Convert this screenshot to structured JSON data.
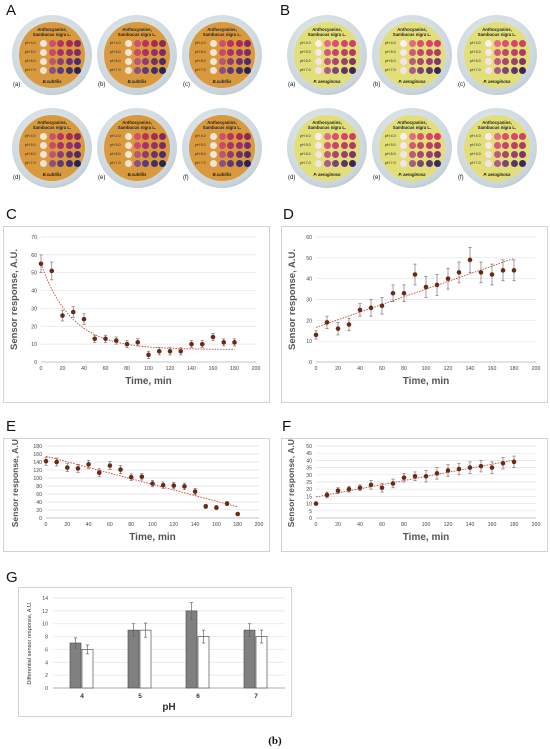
{
  "panel_labels": {
    "A": "A",
    "B": "B",
    "C": "C",
    "D": "D",
    "E": "E",
    "F": "F",
    "G": "G"
  },
  "footer": "(b)",
  "plates": {
    "title_line1": "Anthocyanins,",
    "title_line2": "Sambucus nigra L.",
    "ph_labels": [
      "pH 4.0",
      "pH 5.0",
      "pH 6.0",
      "pH 7.0"
    ],
    "sub_labels": [
      "(a)",
      "(b)",
      "(c)",
      "(d)",
      "(e)",
      "(f)"
    ],
    "A": {
      "organism": "B.subtilis",
      "agar_color": "#d99a3e"
    },
    "B": {
      "organism": "P. aeruginosa",
      "agar_color": "#e2de7a"
    }
  },
  "chart_data": [
    {
      "id": "C",
      "type": "scatter",
      "ylabel": "Sensor response, A.U.",
      "xlabel": "Time, min",
      "xlim": [
        0,
        200
      ],
      "ylim": [
        0,
        70
      ],
      "xticks": [
        0,
        20,
        40,
        60,
        80,
        100,
        120,
        140,
        160,
        180,
        200
      ],
      "yticks": [
        0,
        10,
        20,
        30,
        40,
        50,
        60,
        70
      ],
      "x": [
        0,
        10,
        20,
        30,
        40,
        50,
        60,
        70,
        80,
        90,
        100,
        110,
        120,
        130,
        140,
        150,
        160,
        170,
        180
      ],
      "y": [
        55,
        51,
        26,
        28,
        24,
        13,
        13,
        12,
        10,
        11,
        4,
        6,
        6,
        6,
        10,
        10,
        14,
        11,
        11
      ],
      "err": [
        5,
        5,
        3,
        3,
        3,
        2,
        2,
        2,
        2,
        2,
        2,
        2,
        2,
        2,
        2,
        2,
        2,
        2,
        2
      ],
      "trend": "exponential-decay"
    },
    {
      "id": "D",
      "type": "scatter",
      "ylabel": "Sensor response, A.U.",
      "xlabel": "Time, min",
      "xlim": [
        0,
        200
      ],
      "ylim": [
        0,
        60
      ],
      "xticks": [
        0,
        20,
        40,
        60,
        80,
        100,
        120,
        140,
        160,
        180,
        200
      ],
      "yticks": [
        0,
        10,
        20,
        30,
        40,
        50,
        60
      ],
      "x": [
        0,
        10,
        20,
        30,
        40,
        50,
        60,
        70,
        80,
        90,
        100,
        110,
        120,
        130,
        140,
        150,
        160,
        170,
        180
      ],
      "y": [
        13,
        19,
        16,
        18,
        25,
        26,
        27,
        33,
        33,
        42,
        36,
        37,
        40,
        43,
        49,
        43,
        42,
        44,
        44
      ],
      "err": [
        2,
        3,
        3,
        3,
        3,
        4,
        4,
        4,
        4,
        5,
        5,
        5,
        5,
        5,
        6,
        5,
        5,
        5,
        5
      ],
      "trend": "linear"
    },
    {
      "id": "E",
      "type": "scatter",
      "ylabel": "Sensor response, A.U.",
      "xlabel": "Time, min",
      "xlim": [
        0,
        200
      ],
      "ylim": [
        0,
        180
      ],
      "xticks": [
        0,
        20,
        40,
        60,
        80,
        100,
        120,
        140,
        160,
        180,
        200
      ],
      "yticks": [
        0,
        20,
        40,
        60,
        80,
        100,
        120,
        140,
        160,
        180
      ],
      "x": [
        0,
        10,
        20,
        30,
        40,
        50,
        60,
        70,
        80,
        90,
        100,
        110,
        120,
        130,
        140,
        150,
        160,
        170,
        180
      ],
      "y": [
        142,
        140,
        126,
        124,
        134,
        113,
        131,
        121,
        102,
        103,
        86,
        82,
        81,
        79,
        66,
        29,
        26,
        36,
        10
      ],
      "err": [
        10,
        10,
        10,
        10,
        10,
        10,
        10,
        10,
        8,
        8,
        8,
        8,
        8,
        8,
        8,
        5,
        5,
        5,
        3
      ],
      "trend": "linear"
    },
    {
      "id": "F",
      "type": "scatter",
      "ylabel": "Sensor response, A.U.",
      "xlabel": "Time, min",
      "xlim": [
        0,
        200
      ],
      "ylim": [
        0,
        50
      ],
      "xticks": [
        0,
        20,
        40,
        60,
        80,
        100,
        120,
        140,
        160,
        180,
        200
      ],
      "yticks": [
        0,
        5,
        10,
        15,
        20,
        25,
        30,
        35,
        40,
        45,
        50
      ],
      "x": [
        0,
        10,
        20,
        30,
        40,
        50,
        60,
        70,
        80,
        90,
        100,
        110,
        120,
        130,
        140,
        150,
        160,
        170,
        180
      ],
      "y": [
        10,
        16,
        19,
        20,
        21,
        23,
        21,
        24,
        28,
        29,
        29,
        31,
        33,
        34,
        35,
        36,
        35,
        38,
        39
      ],
      "err": [
        1,
        2,
        2,
        2,
        2,
        3,
        3,
        3,
        3,
        3,
        4,
        4,
        4,
        4,
        4,
        4,
        4,
        4,
        4
      ],
      "trend": "linear"
    },
    {
      "id": "G",
      "type": "bar",
      "ylabel": "Differential sensor response, A.U.",
      "xlabel": "pH",
      "ylim": [
        0,
        14
      ],
      "yticks": [
        0,
        2,
        4,
        6,
        8,
        10,
        12,
        14
      ],
      "categories": [
        "4",
        "5",
        "6",
        "7"
      ],
      "series": [
        {
          "values": [
            7,
            9,
            12,
            9
          ],
          "err": [
            0.8,
            1.0,
            1.3,
            1.0
          ],
          "color": "#808080"
        },
        {
          "values": [
            6,
            9,
            8,
            8
          ],
          "err": [
            0.7,
            1.1,
            1.0,
            1.0
          ],
          "color": "#ffffff"
        }
      ]
    }
  ]
}
